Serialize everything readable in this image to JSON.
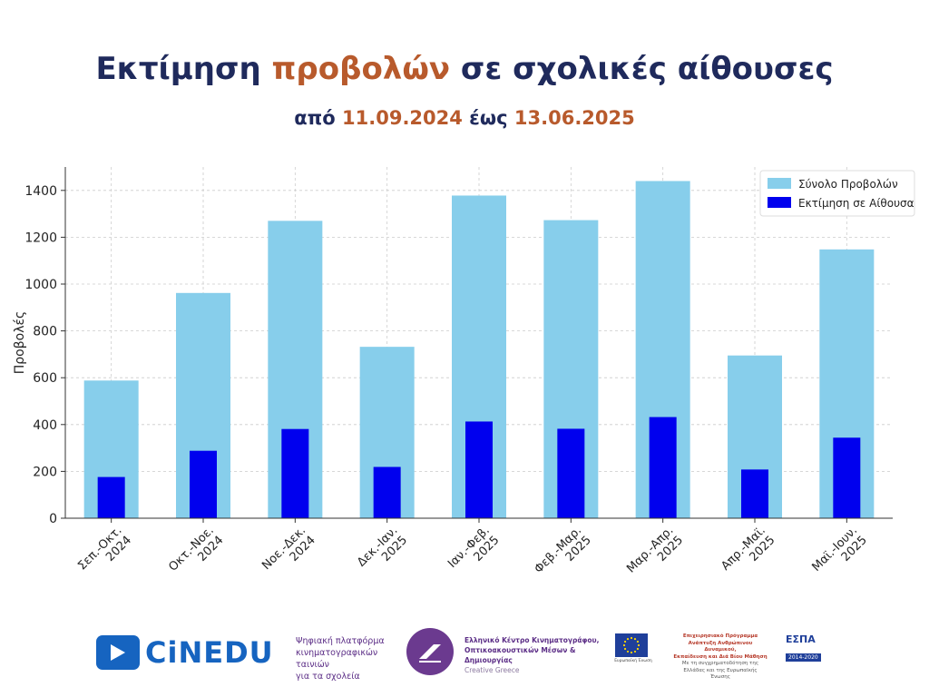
{
  "header": {
    "title_part1": "Εκτίμηση ",
    "title_accent": "προβολών",
    "title_part2": " σε σχολικές αίθουσες",
    "subtitle_part1": "από ",
    "subtitle_date1": "11.09.2024",
    "subtitle_part2": " έως ",
    "subtitle_date2": "13.06.2025"
  },
  "colors": {
    "total": "#87ceeb",
    "classroom": "#0000ee",
    "title": "#1f2a5c",
    "accent": "#b85a2c"
  },
  "chart_data": {
    "type": "bar",
    "categories": [
      [
        "Σεπ.-Οκτ.",
        "2024"
      ],
      [
        "Οκτ.-Νοε.",
        "2024"
      ],
      [
        "Νοε.-Δεκ.",
        "2024"
      ],
      [
        "Δεκ.-Ιαν.",
        "2025"
      ],
      [
        "Ιαν.-Φεβ.",
        "2025"
      ],
      [
        "Φεβ.-Μαρ.",
        "2025"
      ],
      [
        "Μαρ.-Απρ.",
        "2025"
      ],
      [
        "Απρ.-Μαϊ.",
        "2025"
      ],
      [
        "Μαϊ.-Ιουν.",
        "2025"
      ]
    ],
    "series": [
      {
        "name": "Σύνολο Προβολών",
        "values": [
          588,
          962,
          1270,
          732,
          1378,
          1273,
          1440,
          695,
          1148
        ]
      },
      {
        "name": "Εκτίμηση σε Αίθουσα",
        "values": [
          176,
          288,
          381,
          219,
          413,
          382,
          432,
          208,
          344
        ]
      }
    ],
    "ylabel": "Προβολές",
    "xlabel": "",
    "ylim": [
      0,
      1500
    ],
    "yticks": [
      0,
      200,
      400,
      600,
      800,
      1000,
      1200,
      1400
    ],
    "grid": true,
    "legend": "top-right"
  },
  "footer": {
    "cinedu_logo_text": "CiNEDU",
    "platform_line1": "Ψηφιακή πλατφόρμα",
    "platform_line2": "κινηματογραφικών ταινιών",
    "platform_line3": "για τα σχολεία",
    "gfc_line1": "Ελληνικό Κέντρο Κινηματογράφου,",
    "gfc_line2": "Οπτικοακουστικών Μέσων & Δημιουργίας",
    "gfc_line3": "Creative Greece",
    "eu_caption": "Ευρωπαϊκή Ένωση",
    "op_line1": "Επιχειρησιακό Πρόγραμμα",
    "op_line2": "Ανάπτυξη Ανθρώπινου Δυναμικού,",
    "op_line3": "Εκπαίδευση και Διά Βίου Μάθηση",
    "op_line4": "Με τη συγχρηματοδότηση της Ελλάδας και της Ευρωπαϊκής Ένωσης",
    "espa_title": "ΕΣΠΑ",
    "espa_years": "2014-2020"
  }
}
